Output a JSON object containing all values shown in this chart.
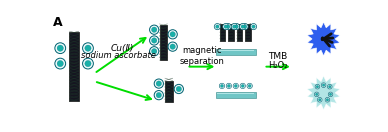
{
  "bg_color": "#ffffff",
  "title_label": "A",
  "arrow_color": "#00dd00",
  "text_color": "#000000",
  "tube_dark": "#151520",
  "tube_mid": "#1e3a2a",
  "bead_outer": "#e8fafa",
  "bead_inner": "#18b0a8",
  "bead_edge": "#006070",
  "bar_color": "#60c0c0",
  "bar_hi": "#c0eeee",
  "star_blue": "#2255ee",
  "star_teal": "#99dddd",
  "label_cu": "Cu(Ⅱ)",
  "label_sa": "sodium ascorbate",
  "label_ms": "magnetic\nseparation",
  "label_tmb": "TMB",
  "label_h2o2": "H₂O₂",
  "fs": 6.5
}
